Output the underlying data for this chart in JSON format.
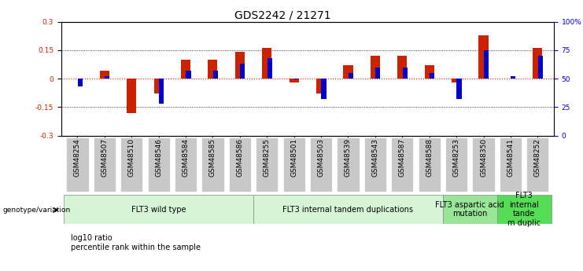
{
  "title": "GDS2242 / 21271",
  "samples": [
    "GSM48254",
    "GSM48507",
    "GSM48510",
    "GSM48546",
    "GSM48584",
    "GSM48585",
    "GSM48586",
    "GSM48255",
    "GSM48501",
    "GSM48503",
    "GSM48539",
    "GSM48543",
    "GSM48587",
    "GSM48588",
    "GSM48253",
    "GSM48350",
    "GSM48541",
    "GSM48252"
  ],
  "log10_ratio": [
    0.0,
    0.04,
    -0.18,
    -0.08,
    0.1,
    0.1,
    0.14,
    0.16,
    -0.02,
    -0.08,
    0.07,
    0.12,
    0.12,
    0.07,
    -0.02,
    0.23,
    0.0,
    0.16
  ],
  "percentile_rank_pct": [
    43,
    52,
    50,
    28,
    57,
    57,
    63,
    68,
    49,
    32,
    55,
    60,
    60,
    55,
    32,
    75,
    52,
    70
  ],
  "red_color": "#cc2200",
  "blue_color": "#0000cc",
  "ylim_left": [
    -0.3,
    0.3
  ],
  "ylim_right": [
    0,
    100
  ],
  "yticks_left": [
    -0.3,
    -0.15,
    0.0,
    0.15,
    0.3
  ],
  "ytick_labels_left": [
    "-0.3",
    "-0.15",
    "0",
    "0.15",
    "0.3"
  ],
  "yticks_right": [
    0,
    25,
    50,
    75,
    100
  ],
  "ytick_labels_right": [
    "0",
    "25",
    "50",
    "75",
    "100%"
  ],
  "groups": [
    {
      "label": "FLT3 wild type",
      "start": 0,
      "end": 7,
      "color": "#d6f5d6"
    },
    {
      "label": "FLT3 internal tandem duplications",
      "start": 7,
      "end": 14,
      "color": "#d6f5d6"
    },
    {
      "label": "FLT3 aspartic acid\nmutation",
      "start": 14,
      "end": 16,
      "color": "#99e699"
    },
    {
      "label": "FLT3\ninternal\ntande\nm duplic",
      "start": 16,
      "end": 18,
      "color": "#55dd55"
    }
  ],
  "legend_red_label": "log10 ratio",
  "legend_blue_label": "percentile rank within the sample",
  "title_fontsize": 10,
  "tick_fontsize": 6.5,
  "group_label_fontsize": 7,
  "sample_tick_fontsize": 6.5
}
